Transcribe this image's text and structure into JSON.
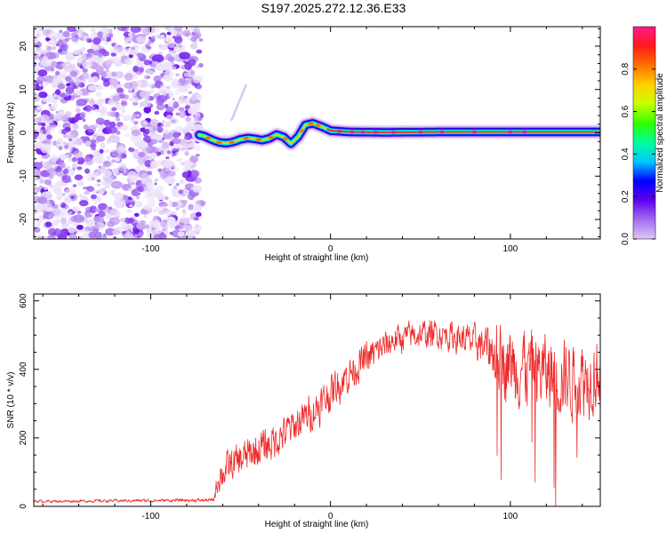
{
  "title": "S197.2025.272.12.36.E33",
  "chart_data": [
    {
      "type": "heatmap",
      "name": "spectrogram",
      "xlabel": "Height of straight line (km)",
      "ylabel": "Frequency (Hz)",
      "xlim": [
        -165,
        150
      ],
      "ylim": [
        -24.5,
        24.5
      ],
      "xticks": [
        -100,
        0,
        100
      ],
      "xtick_labels": [
        "-100",
        "0",
        "100"
      ],
      "yticks": [
        20,
        10,
        0,
        -10,
        -20
      ],
      "ytick_labels": [
        "20",
        "10",
        "0",
        "-10",
        "-20"
      ],
      "noise_region_x": [
        -165,
        -72
      ],
      "ridge": {
        "x": [
          -73,
          -70,
          -66,
          -62,
          -58,
          -54,
          -50,
          -46,
          -42,
          -38,
          -34,
          -30,
          -26,
          -22,
          -18,
          -14,
          -10,
          -6,
          -2,
          0,
          10,
          30,
          60,
          100,
          150
        ],
        "freq": [
          -0.5,
          -0.8,
          -1.6,
          -2.2,
          -2.4,
          -2.1,
          -1.5,
          -1.2,
          -1.4,
          -1.7,
          -1.3,
          -0.4,
          -1.0,
          -2.5,
          -0.9,
          1.8,
          2.2,
          1.6,
          0.9,
          0.5,
          0.2,
          0.1,
          0.2,
          0.2,
          0.2
        ]
      },
      "colorbar": {
        "label": "Normalized spectral amplitude",
        "range": [
          0,
          1
        ],
        "ticks": [
          0.0,
          0.2,
          0.4,
          0.6,
          0.8
        ],
        "tick_labels": [
          "0.0",
          "0.2",
          "0.4",
          "0.6",
          "0.8"
        ],
        "colors": [
          "#ddc9f5",
          "#a36cf0",
          "#6000f0",
          "#0000ff",
          "#00c8ff",
          "#00ff9a",
          "#30ff00",
          "#c8ff00",
          "#ffd000",
          "#ff7000",
          "#ff1a1a",
          "#ff1a8c"
        ]
      }
    },
    {
      "type": "line",
      "name": "snr",
      "xlabel": "Height of straight line (km)",
      "ylabel": "SNR (10 * v/v)",
      "xlim": [
        -165,
        150
      ],
      "ylim": [
        0,
        620
      ],
      "xticks": [
        -100,
        0,
        100
      ],
      "xtick_labels": [
        "-100",
        "0",
        "100"
      ],
      "yticks": [
        0,
        200,
        400,
        600
      ],
      "ytick_labels": [
        "0",
        "200",
        "400",
        "600"
      ],
      "color": "#ee2a2a",
      "envelope": {
        "x": [
          -165,
          -150,
          -100,
          -65,
          -62,
          -55,
          -45,
          -35,
          -25,
          -15,
          -5,
          5,
          15,
          25,
          35,
          45,
          60,
          70,
          80,
          90,
          95,
          100,
          110,
          120,
          130,
          140,
          150
        ],
        "mean": [
          15,
          15,
          17,
          18,
          90,
          120,
          150,
          180,
          215,
          255,
          300,
          360,
          410,
          450,
          485,
          500,
          505,
          495,
          480,
          455,
          430,
          420,
          405,
          390,
          380,
          375,
          400
        ],
        "amp": [
          6,
          6,
          7,
          8,
          70,
          75,
          80,
          80,
          80,
          80,
          80,
          80,
          75,
          70,
          65,
          60,
          60,
          65,
          70,
          110,
          160,
          170,
          170,
          170,
          170,
          170,
          160
        ]
      }
    }
  ]
}
